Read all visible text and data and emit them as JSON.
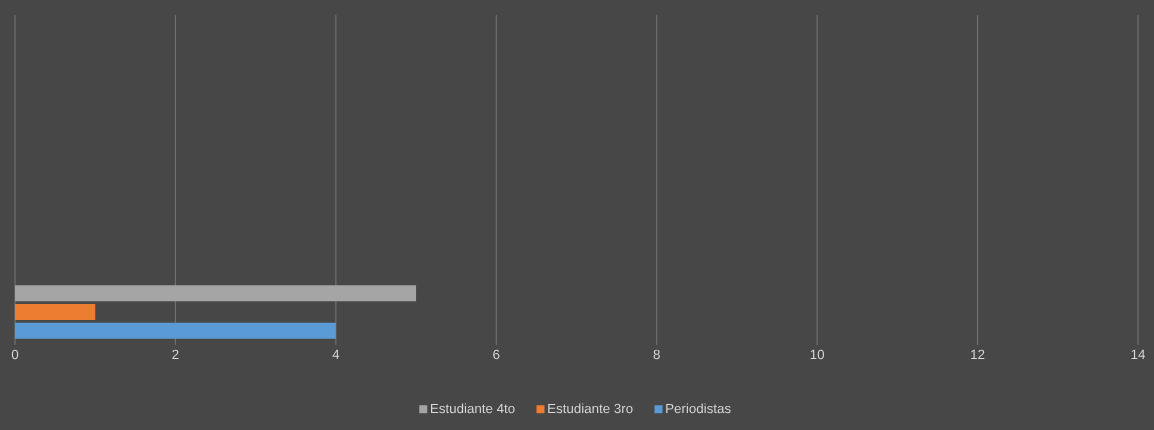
{
  "chart_data": {
    "type": "bar",
    "orientation": "horizontal",
    "categories": [
      null,
      null,
      null,
      null,
      null
    ],
    "series": [
      {
        "name": "Periodistas",
        "color": "#5b9bd5",
        "values": [
          null,
          null,
          null,
          null,
          4
        ]
      },
      {
        "name": "Estudiante 3ro",
        "color": "#ed7d31",
        "values": [
          null,
          null,
          null,
          null,
          1
        ]
      },
      {
        "name": "Estudiante 4to",
        "color": "#a5a5a5",
        "values": [
          null,
          null,
          null,
          null,
          5
        ]
      }
    ],
    "xlim": [
      0,
      14
    ],
    "xticks": [
      0,
      2,
      4,
      6,
      8,
      10,
      12,
      14
    ],
    "grid": "x",
    "legend": "bottom"
  }
}
